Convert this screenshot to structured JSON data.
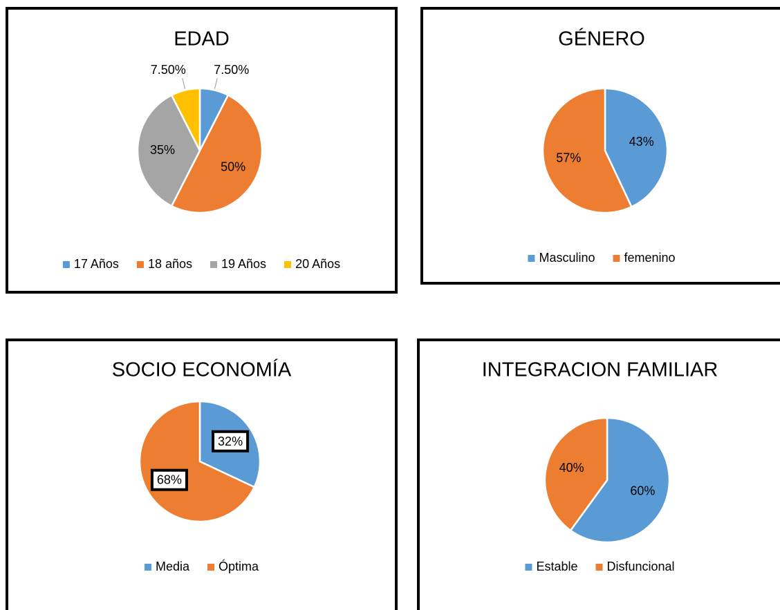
{
  "chart_data": [
    {
      "type": "pie",
      "title": "EDAD",
      "categories": [
        "17 Años",
        "18 años",
        "19 Años",
        "20 Años"
      ],
      "values": [
        7.5,
        50,
        35,
        7.5
      ],
      "value_labels": [
        "7.50%",
        "50%",
        "35%",
        "7.50%"
      ],
      "colors": [
        "#5b9bd5",
        "#ed7d31",
        "#a5a5a5",
        "#ffc000"
      ],
      "legend": "bottom"
    },
    {
      "type": "pie",
      "title": "GÉNERO",
      "categories": [
        "Masculino",
        "femenino"
      ],
      "values": [
        43,
        57
      ],
      "value_labels": [
        "43%",
        "57%"
      ],
      "colors": [
        "#5b9bd5",
        "#ed7d31"
      ],
      "legend": "bottom"
    },
    {
      "type": "pie",
      "title": "SOCIO ECONOMÍA",
      "categories": [
        "Media",
        "Óptima"
      ],
      "values": [
        32,
        68
      ],
      "value_labels": [
        "32%",
        "68%"
      ],
      "colors": [
        "#5b9bd5",
        "#ed7d31"
      ],
      "label_border": true,
      "legend": "bottom"
    },
    {
      "type": "pie",
      "title": "INTEGRACION FAMILIAR",
      "categories": [
        "Estable",
        "Disfuncional"
      ],
      "values": [
        60,
        40
      ],
      "value_labels": [
        "60%",
        "40%"
      ],
      "colors": [
        "#5b9bd5",
        "#ed7d31"
      ],
      "legend": "bottom"
    }
  ]
}
